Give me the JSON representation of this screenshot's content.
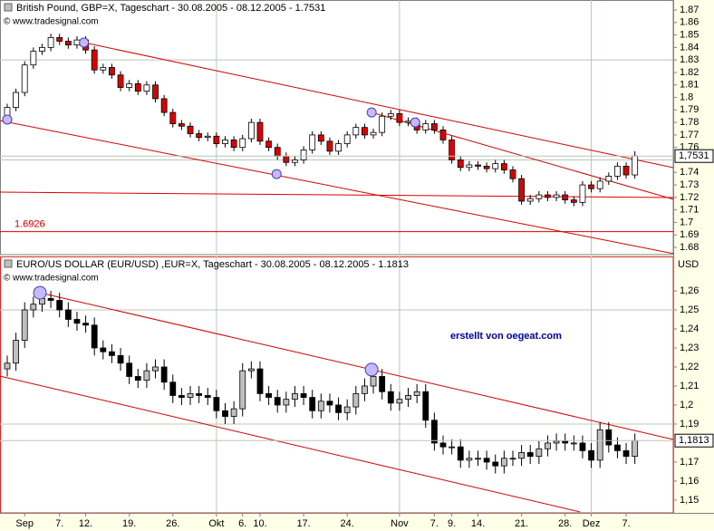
{
  "chart_data": [
    {
      "type": "candlestick",
      "title": "British Pound, GBP=X, Tageschart - 30.08.2005 - 08.12.2005 - 1.7531",
      "source": "© www.tradesignal.com",
      "up_color": "#ffffff",
      "down_color": "#e00000",
      "ylim": [
        1.6742,
        1.878
      ],
      "yticks": [
        1.87,
        1.86,
        1.85,
        1.84,
        1.83,
        1.82,
        1.81,
        1.8,
        1.79,
        1.78,
        1.77,
        1.76,
        1.74,
        1.73,
        1.72,
        1.71,
        1.7,
        1.69,
        1.68
      ],
      "hgrid": [
        1.83,
        1.75
      ],
      "last_label": {
        "value": 1.7531,
        "label": "1,7531"
      },
      "support": 1.6926,
      "trendlines": [
        [
          8.8,
          1.8439,
          76.4,
          1.7438
        ],
        [
          -0.83,
          1.7815,
          76.4,
          1.675
        ],
        [
          41.8,
          1.788,
          76.4,
          1.7185
        ],
        [
          -0.83,
          1.7242,
          76.4,
          1.7199
        ]
      ],
      "markers": [
        [
          8.8,
          1.8439
        ],
        [
          0,
          1.7823
        ],
        [
          30.9,
          1.7387
        ],
        [
          41.8,
          1.788
        ],
        [
          46.8,
          1.78
        ]
      ],
      "open": [
        1.785,
        1.792,
        1.804,
        1.826,
        1.837,
        1.84,
        1.848,
        1.845,
        1.842,
        1.846,
        1.838,
        1.822,
        1.824,
        1.818,
        1.808,
        1.811,
        1.805,
        1.81,
        1.799,
        1.788,
        1.779,
        1.777,
        1.771,
        1.768,
        1.769,
        1.763,
        1.766,
        1.76,
        1.767,
        1.78,
        1.765,
        1.76,
        1.753,
        1.748,
        1.75,
        1.758,
        1.77,
        1.765,
        1.757,
        1.763,
        1.77,
        1.776,
        1.77,
        1.772,
        1.785,
        1.787,
        1.78,
        1.781,
        1.774,
        1.779,
        1.774,
        1.766,
        1.75,
        1.744,
        1.746,
        1.745,
        1.743,
        1.747,
        1.742,
        1.735,
        1.717,
        1.719,
        1.722,
        1.72,
        1.722,
        1.718,
        1.716,
        1.73,
        1.727,
        1.733,
        1.737,
        1.745,
        1.738
      ],
      "high": [
        1.795,
        1.807,
        1.829,
        1.84,
        1.843,
        1.851,
        1.851,
        1.848,
        1.849,
        1.849,
        1.841,
        1.827,
        1.827,
        1.821,
        1.814,
        1.814,
        1.813,
        1.813,
        1.802,
        1.791,
        1.782,
        1.78,
        1.774,
        1.772,
        1.772,
        1.769,
        1.769,
        1.77,
        1.783,
        1.783,
        1.768,
        1.763,
        1.756,
        1.753,
        1.761,
        1.773,
        1.773,
        1.768,
        1.766,
        1.773,
        1.779,
        1.779,
        1.775,
        1.788,
        1.79,
        1.79,
        1.784,
        1.784,
        1.782,
        1.782,
        1.777,
        1.769,
        1.753,
        1.749,
        1.749,
        1.748,
        1.75,
        1.75,
        1.745,
        1.738,
        1.722,
        1.725,
        1.725,
        1.725,
        1.725,
        1.721,
        1.733,
        1.733,
        1.736,
        1.74,
        1.748,
        1.748,
        1.757
      ],
      "low": [
        1.782,
        1.789,
        1.801,
        1.823,
        1.834,
        1.837,
        1.842,
        1.839,
        1.839,
        1.835,
        1.819,
        1.819,
        1.815,
        1.805,
        1.805,
        1.802,
        1.802,
        1.796,
        1.785,
        1.776,
        1.774,
        1.768,
        1.765,
        1.765,
        1.76,
        1.76,
        1.757,
        1.757,
        1.764,
        1.762,
        1.757,
        1.75,
        1.745,
        1.745,
        1.747,
        1.755,
        1.762,
        1.754,
        1.754,
        1.76,
        1.767,
        1.767,
        1.767,
        1.769,
        1.782,
        1.777,
        1.777,
        1.771,
        1.771,
        1.771,
        1.763,
        1.747,
        1.741,
        1.741,
        1.742,
        1.74,
        1.74,
        1.739,
        1.732,
        1.714,
        1.714,
        1.716,
        1.717,
        1.717,
        1.715,
        1.713,
        1.713,
        1.724,
        1.724,
        1.73,
        1.734,
        1.735,
        1.735
      ],
      "close": [
        1.792,
        1.804,
        1.826,
        1.837,
        1.84,
        1.848,
        1.845,
        1.842,
        1.846,
        1.838,
        1.822,
        1.824,
        1.818,
        1.808,
        1.811,
        1.805,
        1.81,
        1.799,
        1.788,
        1.779,
        1.777,
        1.771,
        1.768,
        1.769,
        1.763,
        1.766,
        1.76,
        1.767,
        1.78,
        1.765,
        1.76,
        1.753,
        1.748,
        1.75,
        1.758,
        1.77,
        1.765,
        1.757,
        1.763,
        1.77,
        1.776,
        1.77,
        1.772,
        1.785,
        1.787,
        1.78,
        1.781,
        1.774,
        1.779,
        1.774,
        1.766,
        1.75,
        1.744,
        1.746,
        1.745,
        1.743,
        1.747,
        1.742,
        1.735,
        1.717,
        1.719,
        1.722,
        1.72,
        1.722,
        1.718,
        1.716,
        1.73,
        1.727,
        1.733,
        1.737,
        1.745,
        1.738,
        1.7531
      ]
    },
    {
      "type": "candlestick",
      "title": "EURO/US DOLLAR (EUR/USD) ,EUR=X, Tageschart - 30.08.2005 - 08.12.2005 - 1.1813",
      "source": "© www.tradesignal.com",
      "annotation": "erstellt von oegeat.com",
      "unit": "USD",
      "up_color": "#c0c0c0",
      "down_color": "#000000",
      "ylim": [
        1.1433,
        1.2781
      ],
      "yticks": [
        {
          "value": 1.26,
          "label": "1,26"
        },
        {
          "value": 1.25,
          "label": "1,25"
        },
        {
          "value": 1.24,
          "label": "1,24"
        },
        {
          "value": 1.23,
          "label": "1,23"
        },
        {
          "value": 1.22,
          "label": "1,22"
        },
        {
          "value": 1.21,
          "label": "1,21"
        },
        {
          "value": 1.2,
          "label": "1,2"
        },
        {
          "value": 1.19,
          "label": "1,19"
        },
        {
          "value": 1.17,
          "label": "1,17"
        },
        {
          "value": 1.16,
          "label": "1,16"
        },
        {
          "value": 1.15,
          "label": "1,15"
        }
      ],
      "hgrid": [
        1.25,
        1.19
      ],
      "last_label": {
        "value": 1.1813,
        "label": "1,1813"
      },
      "trendlines": [
        [
          3.75,
          1.259,
          76.4,
          1.1819
        ],
        [
          -0.83,
          1.2152,
          65.7,
          1.1438
        ]
      ],
      "markers": [
        [
          3.75,
          1.259
        ],
        [
          41.8,
          1.2186
        ]
      ],
      "xlim": [
        -0.83,
        76.4
      ],
      "xticks": [
        {
          "value": 2,
          "label": "Sep"
        },
        {
          "value": 6,
          "label": "7."
        },
        {
          "value": 9,
          "label": "12."
        },
        {
          "value": 14,
          "label": "19."
        },
        {
          "value": 19,
          "label": "26."
        },
        {
          "value": 24,
          "label": "Okt",
          "grid": true
        },
        {
          "value": 27,
          "label": "6."
        },
        {
          "value": 29,
          "label": "10."
        },
        {
          "value": 34,
          "label": "17."
        },
        {
          "value": 39,
          "label": "24."
        },
        {
          "value": 45,
          "label": "Nov",
          "grid": true
        },
        {
          "value": 49,
          "label": "7."
        },
        {
          "value": 51,
          "label": "9."
        },
        {
          "value": 54,
          "label": "14."
        },
        {
          "value": 59,
          "label": "21."
        },
        {
          "value": 64,
          "label": "28."
        },
        {
          "value": 67,
          "label": "Dez",
          "grid": true
        },
        {
          "value": 71,
          "label": "7."
        }
      ],
      "open": [
        1.219,
        1.222,
        1.234,
        1.25,
        1.253,
        1.256,
        1.255,
        1.25,
        1.245,
        1.243,
        1.242,
        1.23,
        1.228,
        1.226,
        1.222,
        1.215,
        1.213,
        1.218,
        1.22,
        1.212,
        1.205,
        1.204,
        1.206,
        1.205,
        1.204,
        1.197,
        1.194,
        1.198,
        1.218,
        1.219,
        1.206,
        1.204,
        1.2,
        1.203,
        1.206,
        1.204,
        1.197,
        1.202,
        1.2,
        1.196,
        1.199,
        1.206,
        1.21,
        1.215,
        1.207,
        1.201,
        1.203,
        1.205,
        1.207,
        1.192,
        1.18,
        1.178,
        1.178,
        1.171,
        1.172,
        1.172,
        1.17,
        1.168,
        1.172,
        1.172,
        1.175,
        1.173,
        1.177,
        1.18,
        1.181,
        1.18,
        1.18,
        1.176,
        1.171,
        1.187,
        1.179,
        1.176,
        1.173
      ],
      "high": [
        1.226,
        1.238,
        1.254,
        1.257,
        1.26,
        1.26,
        1.259,
        1.254,
        1.249,
        1.247,
        1.246,
        1.234,
        1.232,
        1.23,
        1.226,
        1.219,
        1.222,
        1.224,
        1.224,
        1.216,
        1.209,
        1.21,
        1.21,
        1.209,
        1.208,
        1.201,
        1.202,
        1.222,
        1.223,
        1.223,
        1.21,
        1.208,
        1.207,
        1.21,
        1.21,
        1.208,
        1.206,
        1.206,
        1.204,
        1.203,
        1.21,
        1.214,
        1.219,
        1.219,
        1.211,
        1.207,
        1.209,
        1.211,
        1.211,
        1.196,
        1.184,
        1.182,
        1.182,
        1.176,
        1.176,
        1.176,
        1.174,
        1.176,
        1.176,
        1.179,
        1.179,
        1.181,
        1.184,
        1.185,
        1.185,
        1.184,
        1.184,
        1.18,
        1.191,
        1.191,
        1.183,
        1.18,
        1.185
      ],
      "low": [
        1.215,
        1.218,
        1.23,
        1.246,
        1.249,
        1.251,
        1.246,
        1.241,
        1.239,
        1.238,
        1.226,
        1.224,
        1.222,
        1.218,
        1.211,
        1.209,
        1.209,
        1.214,
        1.208,
        1.201,
        1.2,
        1.2,
        1.201,
        1.2,
        1.193,
        1.19,
        1.19,
        1.194,
        1.214,
        1.202,
        1.2,
        1.196,
        1.196,
        1.199,
        1.2,
        1.193,
        1.193,
        1.196,
        1.192,
        1.192,
        1.195,
        1.202,
        1.206,
        1.203,
        1.197,
        1.197,
        1.199,
        1.201,
        1.188,
        1.176,
        1.174,
        1.174,
        1.167,
        1.167,
        1.168,
        1.166,
        1.164,
        1.164,
        1.168,
        1.168,
        1.169,
        1.169,
        1.173,
        1.176,
        1.176,
        1.176,
        1.172,
        1.167,
        1.167,
        1.175,
        1.172,
        1.169,
        1.169
      ],
      "close": [
        1.222,
        1.234,
        1.25,
        1.253,
        1.256,
        1.255,
        1.25,
        1.245,
        1.243,
        1.242,
        1.23,
        1.228,
        1.226,
        1.222,
        1.215,
        1.213,
        1.218,
        1.22,
        1.212,
        1.205,
        1.204,
        1.206,
        1.205,
        1.204,
        1.197,
        1.194,
        1.198,
        1.218,
        1.219,
        1.206,
        1.204,
        1.2,
        1.203,
        1.206,
        1.204,
        1.197,
        1.202,
        1.2,
        1.196,
        1.199,
        1.206,
        1.21,
        1.215,
        1.207,
        1.201,
        1.203,
        1.205,
        1.207,
        1.192,
        1.18,
        1.178,
        1.178,
        1.171,
        1.172,
        1.172,
        1.17,
        1.168,
        1.172,
        1.172,
        1.175,
        1.173,
        1.177,
        1.18,
        1.181,
        1.18,
        1.18,
        1.176,
        1.171,
        1.187,
        1.179,
        1.176,
        1.173,
        1.1813
      ]
    }
  ]
}
